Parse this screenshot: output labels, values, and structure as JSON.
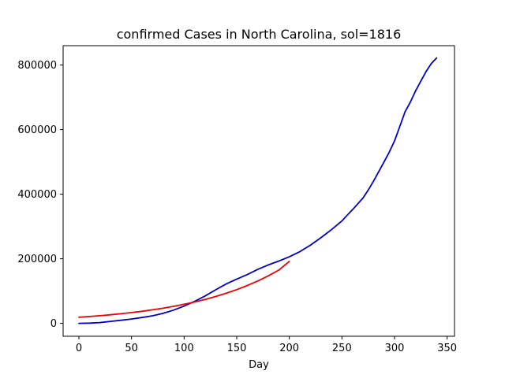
{
  "chart_data": {
    "type": "line",
    "title": "confirmed Cases in North Carolina, sol=1816",
    "xlabel": "Day",
    "ylabel": "",
    "xlim": [
      -15,
      357
    ],
    "ylim": [
      -40000,
      860000
    ],
    "grid": false,
    "legend": "none",
    "x_ticks": [
      0,
      50,
      100,
      150,
      200,
      250,
      300,
      350
    ],
    "x_tick_labels": [
      "0",
      "50",
      "100",
      "150",
      "200",
      "250",
      "300",
      "350"
    ],
    "y_ticks": [
      0,
      200000,
      400000,
      600000,
      800000
    ],
    "y_tick_labels": [
      "0",
      "200000",
      "400000",
      "600000",
      "800000"
    ],
    "series": [
      {
        "color": "#0000cc",
        "points": [
          [
            0,
            0
          ],
          [
            10,
            800
          ],
          [
            20,
            2500
          ],
          [
            30,
            6000
          ],
          [
            40,
            9500
          ],
          [
            50,
            13500
          ],
          [
            60,
            18000
          ],
          [
            70,
            23500
          ],
          [
            80,
            31000
          ],
          [
            90,
            41000
          ],
          [
            100,
            53500
          ],
          [
            110,
            68000
          ],
          [
            120,
            85000
          ],
          [
            130,
            104000
          ],
          [
            140,
            122000
          ],
          [
            150,
            137000
          ],
          [
            160,
            151000
          ],
          [
            170,
            167000
          ],
          [
            180,
            181000
          ],
          [
            190,
            193000
          ],
          [
            200,
            206000
          ],
          [
            210,
            222000
          ],
          [
            220,
            242000
          ],
          [
            230,
            265000
          ],
          [
            240,
            290000
          ],
          [
            250,
            317000
          ],
          [
            255,
            335000
          ],
          [
            260,
            352000
          ],
          [
            270,
            388000
          ],
          [
            275,
            413000
          ],
          [
            280,
            440000
          ],
          [
            285,
            470000
          ],
          [
            290,
            500000
          ],
          [
            295,
            530000
          ],
          [
            300,
            565000
          ],
          [
            305,
            610000
          ],
          [
            310,
            655000
          ],
          [
            315,
            685000
          ],
          [
            320,
            720000
          ],
          [
            325,
            750000
          ],
          [
            330,
            780000
          ],
          [
            335,
            805000
          ],
          [
            340,
            822000
          ]
        ]
      },
      {
        "color": "#ee0000",
        "points": [
          [
            0,
            18800
          ],
          [
            10,
            21100
          ],
          [
            20,
            23700
          ],
          [
            30,
            26500
          ],
          [
            40,
            29700
          ],
          [
            50,
            33300
          ],
          [
            60,
            37300
          ],
          [
            70,
            41900
          ],
          [
            80,
            46900
          ],
          [
            90,
            52600
          ],
          [
            100,
            59000
          ],
          [
            110,
            66100
          ],
          [
            120,
            74100
          ],
          [
            130,
            83100
          ],
          [
            140,
            93100
          ],
          [
            150,
            104400
          ],
          [
            160,
            117000
          ],
          [
            170,
            131200
          ],
          [
            180,
            147000
          ],
          [
            190,
            164800
          ],
          [
            200,
            192000
          ]
        ]
      }
    ]
  }
}
